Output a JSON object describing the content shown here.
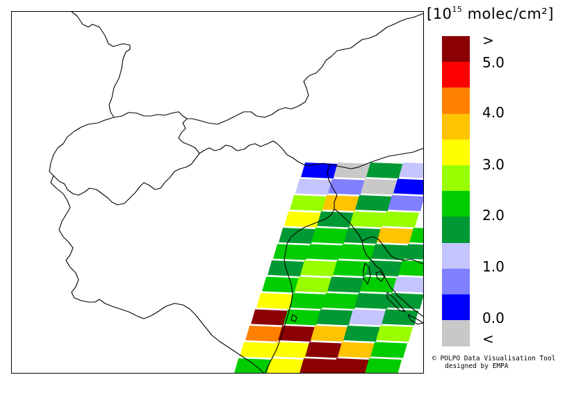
{
  "legend": {
    "units_prefix": "[10",
    "units_exp": "15",
    "units_suffix": " molec/cm²]",
    "bins": [
      {
        "color": "#8b0000"
      },
      {
        "color": "#ff0000"
      },
      {
        "color": "#ff8000"
      },
      {
        "color": "#ffc400"
      },
      {
        "color": "#ffff00"
      },
      {
        "color": "#99ff00"
      },
      {
        "color": "#00cc00"
      },
      {
        "color": "#009933"
      },
      {
        "color": "#c4c4ff"
      },
      {
        "color": "#8080ff"
      },
      {
        "color": "#0000ff"
      },
      {
        "color": "#c8c8c8"
      }
    ],
    "labels": [
      ">",
      "5.0",
      "4.0",
      "3.0",
      "2.0",
      "1.0",
      "0.0",
      "<"
    ]
  },
  "credit": {
    "line1": "© POLPO Data Visualisation Tool",
    "line2": "designed by EMPA"
  },
  "pixel_rows": [
    [
      "#0000ff",
      "#c8c8c8",
      "#009933",
      "#c4c4ff"
    ],
    [
      "#c4c4ff",
      "#8080ff",
      "#c8c8c8",
      "#0000ff"
    ],
    [
      "#99ff00",
      "#ffc400",
      "#009933",
      "#8080ff"
    ],
    [
      "#ffff00",
      "#009933",
      "#99ff00",
      "#99ff00"
    ],
    [
      "#009933",
      "#00cc00",
      "#009933",
      "#ffc400",
      "#00cc00"
    ],
    [
      "#00cc00",
      "#00cc00",
      "#00cc00",
      "#009933",
      "#009933"
    ],
    [
      "#009933",
      "#99ff00",
      "#00cc00",
      "#009933",
      "#00cc00"
    ],
    [
      "#00cc00",
      "#99ff00",
      "#009933",
      "#00cc00",
      "#c4c4ff"
    ],
    [
      "#ffff00",
      "#00cc00",
      "#00cc00",
      "#009933",
      "#009933"
    ],
    [
      "#8b0000",
      "#00cc00",
      "#009933",
      "#c4c4ff",
      "#009933"
    ],
    [
      "#ff8000",
      "#8b0000",
      "#ffc400",
      "#009933",
      "#99ff00"
    ],
    [
      "#ffff00",
      "#ffff00",
      "#8b0000",
      "#ffc400",
      "#00cc00"
    ],
    [
      "#00cc00",
      "#ffff00",
      "#8b0000",
      "#8b0000",
      "#00cc00"
    ]
  ]
}
